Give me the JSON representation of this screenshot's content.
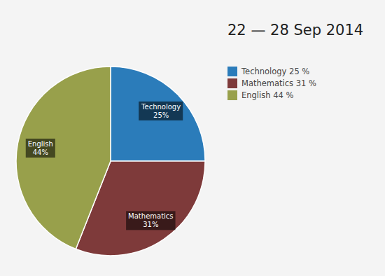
{
  "chart_data": {
    "type": "pie",
    "title": "22 — 28 Sep 2014",
    "categories": [
      "Technology",
      "Mathematics",
      "English"
    ],
    "values": [
      25,
      31,
      44
    ],
    "value_labels": [
      "25%",
      "31%",
      "44%"
    ],
    "legend_labels": [
      "Technology 25 %",
      "Mathematics 31 %",
      "English 44 %"
    ],
    "colors": [
      "#2b7cba",
      "#7e3a3a",
      "#98a04b"
    ],
    "data_labels": true,
    "legend": "upper right"
  }
}
